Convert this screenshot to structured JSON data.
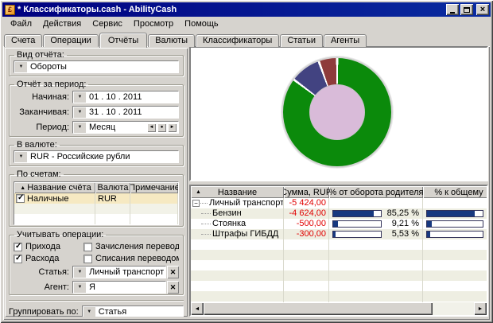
{
  "window": {
    "title": "* Классификаторы.cash - AbilityCash"
  },
  "menu": {
    "items": [
      "Файл",
      "Действия",
      "Сервис",
      "Просмотр",
      "Помощь"
    ]
  },
  "tabs": {
    "items": [
      "Счета",
      "Операции",
      "Отчёты",
      "Валюты",
      "Классификаторы",
      "Статьи",
      "Агенты"
    ],
    "active": "Отчёты"
  },
  "left_panel": {
    "view_group": {
      "legend": "Вид отчёта:",
      "value": "Обороты"
    },
    "period_group": {
      "legend": "Отчёт за период:",
      "start_label": "Начиная:",
      "start_value": "01 . 10 . 2011",
      "end_label": "Заканчивая:",
      "end_value": "31 . 10 . 2011",
      "period_label": "Период:",
      "period_value": "Месяц"
    },
    "currency_group": {
      "legend": "В валюте:",
      "value": "RUR - Российские рубли"
    },
    "accounts_group": {
      "legend": "По счетам:",
      "columns": [
        "Название счёта",
        "Валюта",
        "Примечание"
      ],
      "rows": [
        {
          "checked": true,
          "name": "Наличные",
          "currency": "RUR",
          "note": ""
        }
      ]
    },
    "operations_group": {
      "legend": "Учитывать операции:",
      "checkboxes": [
        {
          "label": "Прихода",
          "checked": true
        },
        {
          "label": "Зачисления переводом",
          "checked": false
        },
        {
          "label": "Расхода",
          "checked": true
        },
        {
          "label": "Списания переводом",
          "checked": false
        }
      ],
      "article_label": "Статья:",
      "article_value": "Личный транспорт",
      "agent_label": "Агент:",
      "agent_value": "Я"
    },
    "group_by": {
      "label": "Группировать по:",
      "value": "Статья"
    }
  },
  "chart_data": {
    "type": "pie",
    "donut": true,
    "categories": [
      "Бензин",
      "Стоянка",
      "Штрафы ГИБДД"
    ],
    "values": [
      85.25,
      9.21,
      5.53
    ],
    "amounts": [
      -4624.0,
      -500.0,
      -300.0
    ],
    "colors": [
      "#0b8a0b",
      "#424381",
      "#8e3b3b"
    ],
    "hole_color": "#d9bbd9",
    "legend_position": "none",
    "title": ""
  },
  "report_table": {
    "columns": [
      "Название",
      "Сумма, RUR",
      "% от оборота родителя",
      "% к общему"
    ],
    "rows": [
      {
        "name": "Личный транспорт",
        "sum": "-5 424,00",
        "percent": "",
        "bar": 0,
        "level": 0
      },
      {
        "name": "Бензин",
        "sum": "-4 624,00",
        "percent": "85,25 %",
        "bar": 85.25,
        "level": 1
      },
      {
        "name": "Стоянка",
        "sum": "-500,00",
        "percent": "9,21 %",
        "bar": 9.21,
        "level": 1
      },
      {
        "name": "Штрафы ГИБДД",
        "sum": "-300,00",
        "percent": "5,53 %",
        "bar": 5.53,
        "level": 1
      }
    ]
  },
  "colors": {
    "titlebar": "#000080",
    "negative_amount": "#e10000",
    "bar_fill": "#17387f",
    "account_row_highlight": "#f6e9c2"
  }
}
